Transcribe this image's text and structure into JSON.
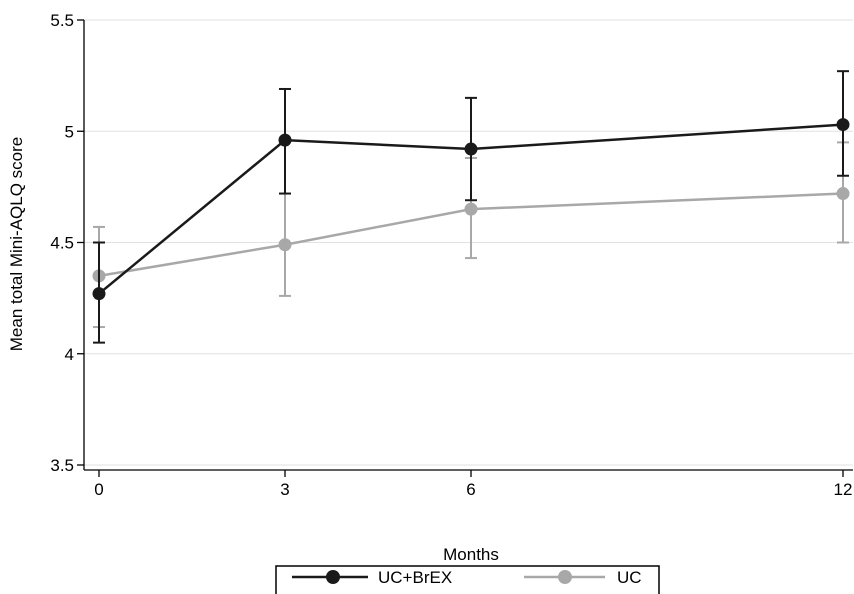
{
  "chart_data": {
    "type": "line",
    "xlabel": "Months",
    "ylabel": "Mean total Mini-AQLQ score",
    "x": [
      0,
      3,
      6,
      12
    ],
    "xticks": [
      "0",
      "3",
      "6",
      "12"
    ],
    "yticks": [
      "3.5",
      "4",
      "4.5",
      "5",
      "5.5"
    ],
    "ylim": [
      3.5,
      5.5
    ],
    "xlim": [
      0,
      12
    ],
    "grid": true,
    "legend_position": "bottom-center",
    "series": [
      {
        "name": "UC+BrEX",
        "color": "#1a1a1a",
        "values": [
          4.27,
          4.96,
          4.92,
          5.03
        ],
        "ci_low": [
          4.05,
          4.72,
          4.69,
          4.8
        ],
        "ci_high": [
          4.5,
          5.19,
          5.15,
          5.27
        ]
      },
      {
        "name": "UC",
        "color": "#a8a8a8",
        "values": [
          4.35,
          4.49,
          4.65,
          4.72
        ],
        "ci_low": [
          4.12,
          4.26,
          4.43,
          4.5
        ],
        "ci_high": [
          4.57,
          4.72,
          4.88,
          4.95
        ]
      }
    ]
  }
}
